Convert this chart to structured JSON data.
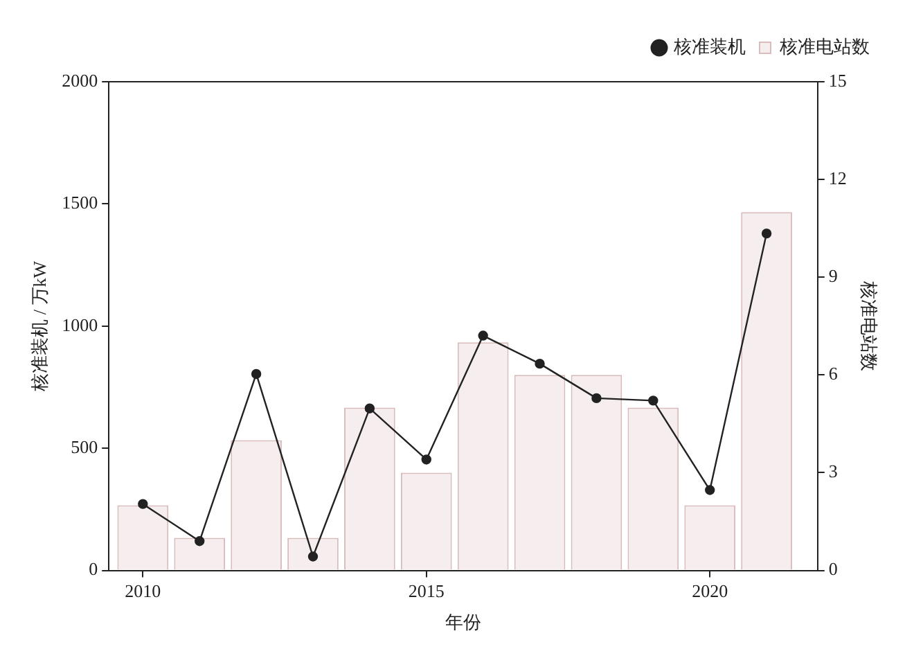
{
  "chart_data": {
    "type": "bar",
    "xlabel": "年份",
    "ylabel": "核准装机 / 万kW",
    "y2label": "核准电站数",
    "x": [
      2010,
      2011,
      2012,
      2013,
      2014,
      2015,
      2016,
      2017,
      2018,
      2019,
      2020,
      2021
    ],
    "xlim": [
      2009.4,
      2021.9
    ],
    "xticks": [
      2010,
      2015,
      2020
    ],
    "ylim": [
      0,
      2000
    ],
    "yticks": [
      0,
      500,
      1000,
      1500,
      2000
    ],
    "y2lim": [
      0,
      15
    ],
    "y2ticks": [
      0,
      3,
      6,
      9,
      12,
      15
    ],
    "series": [
      {
        "name": "核准装机",
        "type": "line",
        "color": "#222222",
        "axis": "y",
        "values": [
          272,
          120,
          804,
          57,
          663,
          454,
          961,
          846,
          705,
          695,
          329,
          1379
        ]
      },
      {
        "name": "核准电站数",
        "color": "#f6eeee",
        "axis": "y2",
        "values": [
          2,
          1,
          4,
          1,
          5,
          3,
          7,
          6,
          6,
          5,
          2,
          11
        ]
      }
    ],
    "marker": "circle",
    "grid": false,
    "legend": "top right"
  }
}
